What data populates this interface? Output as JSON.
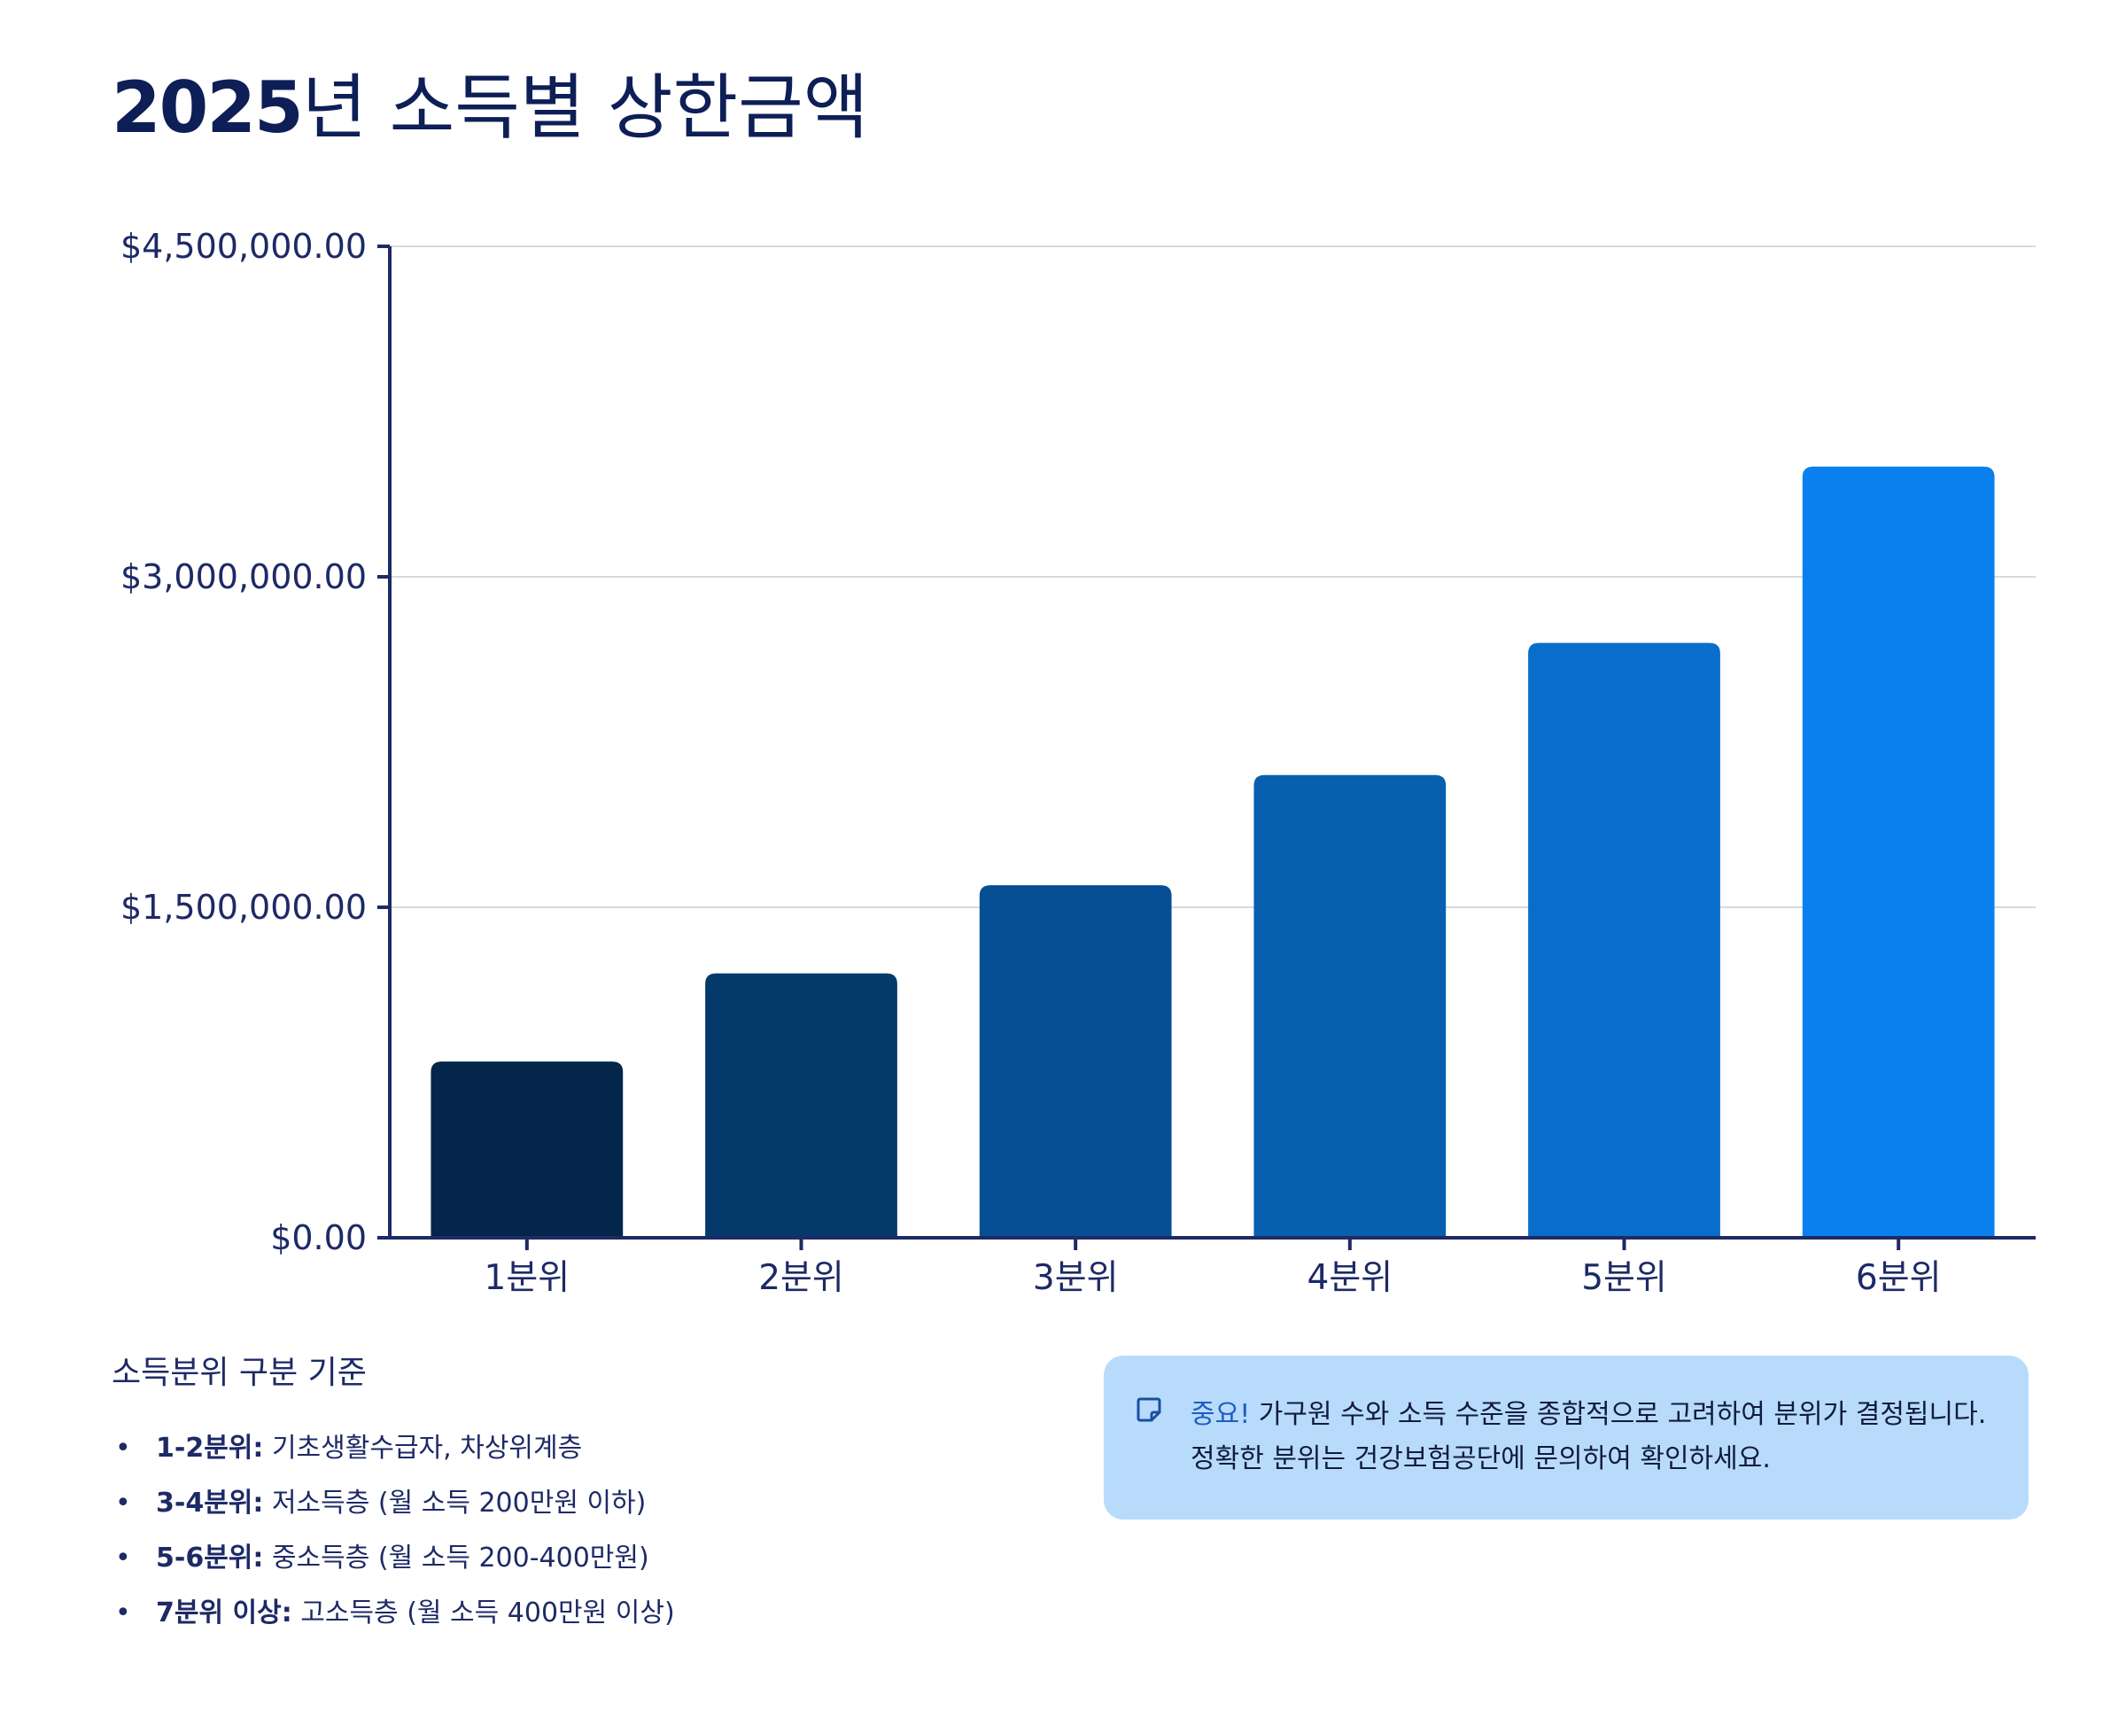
{
  "title": {
    "year": "2025",
    "rest": "년 소득별 상한금액"
  },
  "colors": {
    "title": "#0e1e56",
    "axis": "#1d2a66",
    "grid": "#d6d9e2",
    "bars": [
      "#03264a",
      "#043a6b",
      "#064f94",
      "#085fae",
      "#096dcb",
      "#0a80ef"
    ],
    "notice_bg": "#b8dbfc"
  },
  "chart_data": {
    "type": "bar",
    "title": "",
    "xlabel": "",
    "ylabel": "",
    "categories": [
      "1분위",
      "2분위",
      "3분위",
      "4분위",
      "5분위",
      "6분위"
    ],
    "values": [
      800000,
      1200000,
      1600000,
      2100000,
      2700000,
      3500000
    ],
    "ylim": [
      0,
      4500000
    ],
    "yticks": [
      0,
      1500000,
      3000000,
      4500000
    ],
    "ytick_labels": [
      "$0.00",
      "$1,500,000.00",
      "$3,000,000.00",
      "$4,500,000.00"
    ],
    "grid": true,
    "legend": "none"
  },
  "criteria": {
    "title": "소득분위 구분 기준",
    "items": [
      {
        "term": "1-2분위:",
        "desc": " 기초생활수급자, 차상위계층"
      },
      {
        "term": "3-4분위:",
        "desc": " 저소득층 (월 소득 200만원 이하)"
      },
      {
        "term": "5-6분위:",
        "desc": " 중소득층 (월 소득 200-400만원)"
      },
      {
        "term": "7분위 이상:",
        "desc": " 고소득층 (월 소득 400만원 이상)"
      }
    ]
  },
  "notice": {
    "icon": "sticky-note-icon",
    "label": "중요!",
    "text": " 가구원 수와 소득 수준을 종합적으로 고려하여 분위가 결정됩니다. 정확한 분위는 건강보험공단에 문의하여 확인하세요."
  }
}
